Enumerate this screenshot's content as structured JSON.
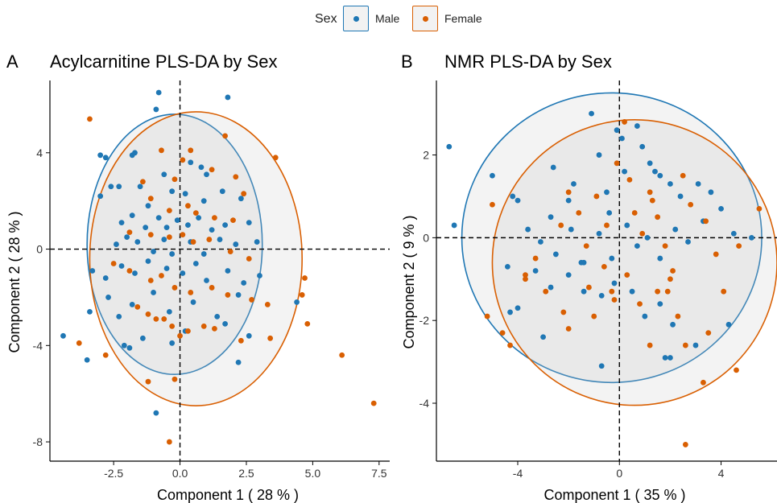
{
  "legend": {
    "title": "Sex",
    "items": [
      {
        "label": "Male",
        "color": "#1f77b4"
      },
      {
        "label": "Female",
        "color": "#d95f02"
      }
    ]
  },
  "chart_data": [
    {
      "type": "scatter",
      "tag": "A",
      "title": "Acylcarnitine PLS-DA by Sex",
      "xlabel": "Component 1 ( 28 % )",
      "ylabel": "Component 2 ( 28 % )",
      "xlim": [
        -4.9,
        7.9
      ],
      "ylim": [
        -8.8,
        7.0
      ],
      "xticks": [
        -2.5,
        0,
        2.5,
        5,
        7.5
      ],
      "xtick_labels": [
        "-2.5",
        "0.0",
        "2.5",
        "5.0",
        "7.5"
      ],
      "yticks": [
        -8,
        -4,
        0,
        4
      ],
      "ytick_labels": [
        "-8",
        "-4",
        "0",
        "4"
      ],
      "grid": false,
      "reference_lines": {
        "x": 0,
        "y": 0,
        "style": "dashed"
      },
      "legend_position": "top",
      "ellipses": [
        {
          "series": "Male",
          "center": [
            -0.2,
            0.2
          ],
          "radius_x": 3.3,
          "radius_y": 5.4
        },
        {
          "series": "Female",
          "center": [
            0.6,
            -0.4
          ],
          "radius_x": 4.0,
          "radius_y": 6.1
        }
      ],
      "series": [
        {
          "name": "Male",
          "color": "#1f77b4",
          "points": [
            [
              -0.8,
              6.5
            ],
            [
              1.8,
              6.3
            ],
            [
              -0.9,
              5.8
            ],
            [
              -3.0,
              3.9
            ],
            [
              -2.8,
              3.8
            ],
            [
              -1.8,
              3.9
            ],
            [
              -1.7,
              4.0
            ],
            [
              -0.6,
              3.1
            ],
            [
              0.4,
              3.6
            ],
            [
              0.8,
              3.4
            ],
            [
              1.0,
              3.1
            ],
            [
              -2.6,
              2.6
            ],
            [
              -2.3,
              2.6
            ],
            [
              -3.0,
              2.2
            ],
            [
              -1.5,
              2.6
            ],
            [
              -1.2,
              1.8
            ],
            [
              -0.3,
              2.4
            ],
            [
              0.2,
              2.3
            ],
            [
              0.9,
              2.0
            ],
            [
              1.6,
              2.4
            ],
            [
              2.3,
              2.1
            ],
            [
              -2.2,
              1.1
            ],
            [
              -1.8,
              1.4
            ],
            [
              -1.3,
              0.9
            ],
            [
              -0.8,
              1.3
            ],
            [
              -0.5,
              0.9
            ],
            [
              -0.1,
              1.2
            ],
            [
              0.3,
              1.0
            ],
            [
              0.7,
              1.3
            ],
            [
              1.2,
              0.8
            ],
            [
              1.7,
              1.0
            ],
            [
              2.6,
              1.1
            ],
            [
              -2.4,
              0.2
            ],
            [
              -2.0,
              0.5
            ],
            [
              -1.6,
              0.3
            ],
            [
              -1.0,
              -0.1
            ],
            [
              -0.6,
              0.4
            ],
            [
              -0.3,
              -0.2
            ],
            [
              0.4,
              0.3
            ],
            [
              0.9,
              -0.2
            ],
            [
              1.5,
              0.4
            ],
            [
              2.1,
              0.2
            ],
            [
              2.9,
              0.3
            ],
            [
              -3.3,
              -0.9
            ],
            [
              -2.8,
              -1.2
            ],
            [
              -2.2,
              -0.7
            ],
            [
              -1.7,
              -1.0
            ],
            [
              -1.2,
              -0.5
            ],
            [
              -0.5,
              -0.8
            ],
            [
              0.1,
              -1.0
            ],
            [
              0.6,
              -0.6
            ],
            [
              1.0,
              -1.3
            ],
            [
              1.8,
              -0.9
            ],
            [
              2.4,
              -1.4
            ],
            [
              -3.4,
              -2.6
            ],
            [
              -2.7,
              -2.0
            ],
            [
              -2.3,
              -2.8
            ],
            [
              -1.8,
              -2.3
            ],
            [
              -1.0,
              -1.8
            ],
            [
              -0.4,
              -2.6
            ],
            [
              0.5,
              -2.2
            ],
            [
              1.4,
              -2.8
            ],
            [
              2.2,
              -1.9
            ],
            [
              3.0,
              -1.1
            ],
            [
              -4.4,
              -3.6
            ],
            [
              -3.5,
              -4.6
            ],
            [
              -2.1,
              -4.0
            ],
            [
              -1.4,
              -3.7
            ],
            [
              -0.3,
              -3.9
            ],
            [
              0.2,
              -3.4
            ],
            [
              1.7,
              -3.1
            ],
            [
              2.6,
              -3.6
            ],
            [
              2.2,
              -4.7
            ],
            [
              4.4,
              -2.2
            ],
            [
              -0.9,
              -6.8
            ],
            [
              -1.9,
              -4.1
            ]
          ]
        },
        {
          "name": "Female",
          "color": "#d95f02",
          "points": [
            [
              -3.4,
              5.4
            ],
            [
              -0.7,
              4.1
            ],
            [
              1.7,
              4.7
            ],
            [
              3.6,
              3.8
            ],
            [
              0.4,
              4.1
            ],
            [
              0.1,
              3.7
            ],
            [
              -1.4,
              2.8
            ],
            [
              -0.2,
              2.9
            ],
            [
              1.2,
              3.3
            ],
            [
              2.1,
              3.0
            ],
            [
              2.4,
              2.3
            ],
            [
              -1.1,
              2.1
            ],
            [
              -0.4,
              1.6
            ],
            [
              0.3,
              1.8
            ],
            [
              0.6,
              1.5
            ],
            [
              1.3,
              1.3
            ],
            [
              2.0,
              1.2
            ],
            [
              -1.9,
              0.7
            ],
            [
              -1.1,
              0.6
            ],
            [
              -0.4,
              0.5
            ],
            [
              0.1,
              0.6
            ],
            [
              0.5,
              0.3
            ],
            [
              1.1,
              0.4
            ],
            [
              1.9,
              -0.1
            ],
            [
              2.6,
              -0.4
            ],
            [
              -2.5,
              -0.6
            ],
            [
              -1.9,
              -0.9
            ],
            [
              -1.1,
              -1.3
            ],
            [
              -0.7,
              -1.1
            ],
            [
              -0.2,
              -1.6
            ],
            [
              0.4,
              -1.8
            ],
            [
              1.2,
              -1.6
            ],
            [
              1.8,
              -1.9
            ],
            [
              2.7,
              -2.1
            ],
            [
              3.3,
              -2.3
            ],
            [
              -1.6,
              -2.4
            ],
            [
              -1.2,
              -2.7
            ],
            [
              -0.6,
              -2.9
            ],
            [
              -0.3,
              -3.2
            ],
            [
              0.3,
              -3.4
            ],
            [
              0.9,
              -3.2
            ],
            [
              1.3,
              -3.3
            ],
            [
              4.7,
              -1.2
            ],
            [
              4.6,
              -1.9
            ],
            [
              4.8,
              -3.1
            ],
            [
              3.4,
              -3.7
            ],
            [
              6.1,
              -4.4
            ],
            [
              7.3,
              -6.4
            ],
            [
              -3.8,
              -3.9
            ],
            [
              -2.8,
              -4.4
            ],
            [
              -1.2,
              -5.5
            ],
            [
              -0.2,
              -5.4
            ],
            [
              -0.4,
              -8.0
            ],
            [
              -0.9,
              -2.9
            ],
            [
              0.0,
              -3.6
            ],
            [
              2.3,
              -3.8
            ]
          ]
        }
      ]
    },
    {
      "type": "scatter",
      "tag": "B",
      "title": "NMR PLS-DA by Sex",
      "xlabel": "Component 1 ( 35 % )",
      "ylabel": "Component 2 ( 9 % )",
      "xlim": [
        -7.2,
        6.2
      ],
      "ylim": [
        -5.4,
        3.8
      ],
      "xticks": [
        -4,
        0,
        4
      ],
      "xtick_labels": [
        "-4",
        "0",
        "4"
      ],
      "yticks": [
        -4,
        -2,
        0,
        2
      ],
      "ytick_labels": [
        "-4",
        "-2",
        "0",
        "2"
      ],
      "grid": false,
      "reference_lines": {
        "x": 0,
        "y": 0,
        "style": "dashed"
      },
      "legend_position": "top",
      "ellipses": [
        {
          "series": "Male",
          "center": [
            -0.3,
            0.0
          ],
          "radius_x": 5.9,
          "radius_y": 3.5
        },
        {
          "series": "Female",
          "center": [
            0.6,
            -0.6
          ],
          "radius_x": 5.6,
          "radius_y": 3.45
        }
      ],
      "series": [
        {
          "name": "Male",
          "color": "#1f77b4",
          "points": [
            [
              -6.7,
              2.2
            ],
            [
              -6.5,
              0.3
            ],
            [
              -5.0,
              1.5
            ],
            [
              -4.2,
              1.0
            ],
            [
              -4.0,
              0.9
            ],
            [
              -4.4,
              -0.7
            ],
            [
              -4.0,
              -1.7
            ],
            [
              -4.3,
              -1.8
            ],
            [
              -3.0,
              -2.4
            ],
            [
              -2.6,
              1.7
            ],
            [
              -2.7,
              0.5
            ],
            [
              -2.0,
              0.9
            ],
            [
              -1.8,
              1.3
            ],
            [
              -1.1,
              3.0
            ],
            [
              -0.8,
              2.0
            ],
            [
              -0.5,
              1.1
            ],
            [
              -0.1,
              2.6
            ],
            [
              0.1,
              2.4
            ],
            [
              0.7,
              2.7
            ],
            [
              0.9,
              2.2
            ],
            [
              1.2,
              1.8
            ],
            [
              1.6,
              1.5
            ],
            [
              2.0,
              1.3
            ],
            [
              2.4,
              1.0
            ],
            [
              3.1,
              1.3
            ],
            [
              3.6,
              1.1
            ],
            [
              4.0,
              0.7
            ],
            [
              -3.6,
              0.2
            ],
            [
              -3.1,
              -0.1
            ],
            [
              -2.5,
              -0.4
            ],
            [
              -1.9,
              0.2
            ],
            [
              -1.4,
              -0.6
            ],
            [
              -0.8,
              0.1
            ],
            [
              -0.3,
              -0.5
            ],
            [
              0.3,
              0.3
            ],
            [
              0.7,
              -0.2
            ],
            [
              1.1,
              0.0
            ],
            [
              1.6,
              -0.5
            ],
            [
              2.2,
              0.2
            ],
            [
              2.7,
              -0.1
            ],
            [
              3.3,
              0.4
            ],
            [
              4.5,
              0.1
            ],
            [
              5.2,
              0.0
            ],
            [
              -3.3,
              -0.8
            ],
            [
              -2.7,
              -1.2
            ],
            [
              -2.0,
              -0.9
            ],
            [
              -1.4,
              -1.3
            ],
            [
              -0.7,
              -1.4
            ],
            [
              -0.2,
              -1.1
            ],
            [
              0.5,
              -1.3
            ],
            [
              1.0,
              -1.9
            ],
            [
              1.6,
              -1.6
            ],
            [
              2.1,
              -2.1
            ],
            [
              3.0,
              -2.6
            ],
            [
              4.3,
              -2.1
            ],
            [
              1.8,
              -2.9
            ],
            [
              2.0,
              -2.9
            ],
            [
              -0.7,
              -3.1
            ],
            [
              -1.5,
              -0.6
            ],
            [
              0.2,
              1.6
            ],
            [
              -0.4,
              0.6
            ],
            [
              1.4,
              1.6
            ]
          ]
        },
        {
          "name": "Female",
          "color": "#d95f02",
          "points": [
            [
              -5.0,
              0.8
            ],
            [
              -5.2,
              -1.9
            ],
            [
              -4.6,
              -2.3
            ],
            [
              -4.3,
              -2.6
            ],
            [
              -3.7,
              -0.9
            ],
            [
              -3.3,
              -0.5
            ],
            [
              -2.9,
              -1.3
            ],
            [
              -2.3,
              0.3
            ],
            [
              -2.0,
              1.1
            ],
            [
              -1.6,
              0.6
            ],
            [
              -1.3,
              -0.2
            ],
            [
              -0.9,
              1.0
            ],
            [
              -0.5,
              0.3
            ],
            [
              -0.1,
              1.8
            ],
            [
              0.4,
              1.4
            ],
            [
              0.6,
              0.6
            ],
            [
              0.9,
              0.1
            ],
            [
              1.2,
              1.1
            ],
            [
              1.5,
              0.5
            ],
            [
              1.8,
              -0.2
            ],
            [
              2.1,
              -0.8
            ],
            [
              2.5,
              1.5
            ],
            [
              2.8,
              0.8
            ],
            [
              3.4,
              0.4
            ],
            [
              3.8,
              -0.4
            ],
            [
              3.5,
              -2.3
            ],
            [
              4.1,
              -1.3
            ],
            [
              4.7,
              -0.2
            ],
            [
              5.5,
              0.7
            ],
            [
              -3.7,
              -1.0
            ],
            [
              -2.2,
              -1.8
            ],
            [
              -1.2,
              -1.2
            ],
            [
              -0.6,
              -0.7
            ],
            [
              -0.2,
              -1.5
            ],
            [
              0.3,
              -0.9
            ],
            [
              0.8,
              -1.6
            ],
            [
              1.2,
              -2.6
            ],
            [
              1.9,
              -1.3
            ],
            [
              2.3,
              -1.9
            ],
            [
              2.6,
              -2.6
            ],
            [
              3.3,
              -3.5
            ],
            [
              4.6,
              -3.2
            ],
            [
              2.6,
              -5.0
            ],
            [
              -2.0,
              -2.2
            ],
            [
              -1.0,
              -1.9
            ],
            [
              -0.3,
              -1.3
            ],
            [
              1.5,
              -1.3
            ],
            [
              2.0,
              -1.0
            ],
            [
              0.2,
              2.8
            ],
            [
              1.3,
              0.9
            ]
          ]
        }
      ]
    }
  ]
}
